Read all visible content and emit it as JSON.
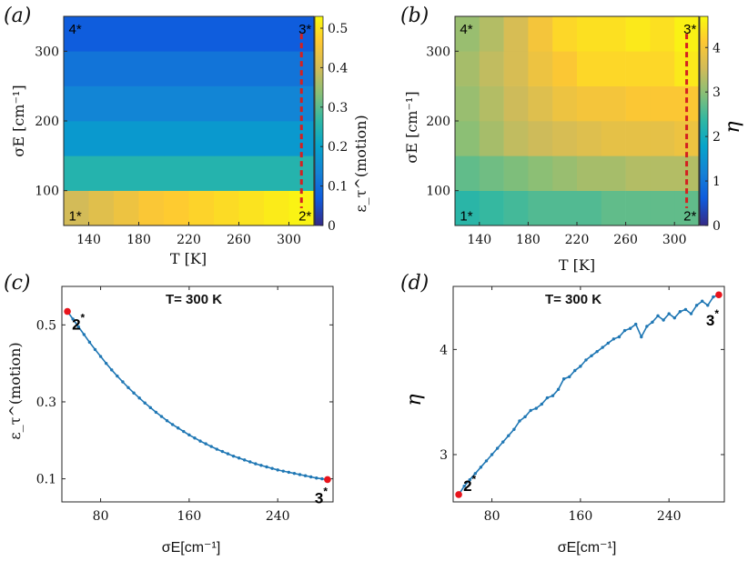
{
  "panels": {
    "a": {
      "label": "(a)"
    },
    "b": {
      "label": "(b)"
    },
    "c": {
      "label": "(c)"
    },
    "d": {
      "label": "(d)"
    }
  },
  "colors": {
    "line": "#1f77b4",
    "marker": "#e8141c",
    "dashed": "#d42020"
  },
  "chart_data": [
    {
      "panel": "a",
      "type": "heatmap",
      "xlabel": "T [K]",
      "ylabel": "σE [cm⁻¹]",
      "x_ticks": [
        140,
        180,
        220,
        260,
        300
      ],
      "y_ticks": [
        100,
        200,
        300
      ],
      "xlim": [
        120,
        320
      ],
      "ylim": [
        50,
        350
      ],
      "colorbar": {
        "label": "ε_τ^(motion)",
        "range": [
          0,
          0.53
        ],
        "ticks": [
          0,
          0.1,
          0.2,
          0.3,
          0.4,
          0.5
        ],
        "tick_labels": [
          "0",
          "0.1",
          "0.2",
          "0.3",
          "0.4",
          "0.5"
        ]
      },
      "rows_sigma": [
        75,
        125,
        175,
        225,
        275,
        325
      ],
      "cols_T": [
        130,
        150,
        170,
        190,
        210,
        230,
        250,
        270,
        290,
        310
      ],
      "values": [
        [
          0.4,
          0.42,
          0.44,
          0.46,
          0.47,
          0.48,
          0.49,
          0.5,
          0.51,
          0.52
        ],
        [
          0.25,
          0.25,
          0.25,
          0.25,
          0.25,
          0.25,
          0.25,
          0.25,
          0.25,
          0.25
        ],
        [
          0.18,
          0.18,
          0.18,
          0.18,
          0.18,
          0.18,
          0.18,
          0.18,
          0.18,
          0.18
        ],
        [
          0.14,
          0.14,
          0.14,
          0.14,
          0.14,
          0.14,
          0.14,
          0.14,
          0.14,
          0.14
        ],
        [
          0.11,
          0.11,
          0.11,
          0.11,
          0.11,
          0.11,
          0.11,
          0.11,
          0.11,
          0.11
        ],
        [
          0.07,
          0.07,
          0.07,
          0.07,
          0.07,
          0.07,
          0.07,
          0.07,
          0.07,
          0.07
        ]
      ],
      "corners": [
        {
          "text": "4*",
          "T": 124,
          "sigma": 333
        },
        {
          "text": "3*",
          "T": 318,
          "sigma": 333
        },
        {
          "text": "1*",
          "T": 124,
          "sigma": 65
        },
        {
          "text": "2*",
          "T": 318,
          "sigma": 65
        }
      ],
      "dashed_line": {
        "T": 310,
        "sigma": [
          75,
          325
        ]
      }
    },
    {
      "panel": "b",
      "type": "heatmap",
      "xlabel": "T [K]",
      "ylabel": "σE [cm⁻¹]",
      "x_ticks": [
        140,
        180,
        220,
        260,
        300
      ],
      "y_ticks": [
        100,
        200,
        300
      ],
      "xlim": [
        120,
        320
      ],
      "ylim": [
        50,
        350
      ],
      "colorbar": {
        "label": "η",
        "range": [
          0,
          4.7
        ],
        "ticks": [
          0,
          1,
          2,
          3,
          4
        ],
        "tick_labels": [
          "0",
          "1",
          "2",
          "3",
          "4"
        ]
      },
      "rows_sigma": [
        75,
        125,
        175,
        225,
        275,
        325
      ],
      "cols_T": [
        130,
        150,
        170,
        190,
        210,
        230,
        250,
        270,
        290,
        310
      ],
      "values": [
        [
          2.3,
          2.4,
          2.5,
          2.6,
          2.6,
          2.6,
          2.7,
          2.7,
          2.7,
          2.7
        ],
        [
          2.7,
          2.8,
          2.9,
          3.0,
          3.1,
          3.2,
          3.2,
          3.3,
          3.3,
          3.3
        ],
        [
          3.0,
          3.2,
          3.4,
          3.5,
          3.6,
          3.7,
          3.8,
          3.8,
          3.8,
          3.9
        ],
        [
          3.1,
          3.3,
          3.5,
          3.7,
          3.9,
          4.0,
          4.0,
          4.1,
          4.1,
          4.1
        ],
        [
          3.2,
          3.4,
          3.6,
          3.9,
          4.1,
          4.3,
          4.3,
          4.3,
          4.3,
          4.5
        ],
        [
          3.1,
          3.3,
          3.6,
          4.0,
          4.3,
          4.4,
          4.4,
          4.5,
          4.4,
          4.6
        ]
      ],
      "corners": [
        {
          "text": "4*",
          "T": 124,
          "sigma": 333
        },
        {
          "text": "3*",
          "T": 318,
          "sigma": 333
        },
        {
          "text": "1*",
          "T": 124,
          "sigma": 65
        },
        {
          "text": "2*",
          "T": 318,
          "sigma": 65
        }
      ],
      "dashed_line": {
        "T": 310,
        "sigma": [
          75,
          325
        ]
      }
    },
    {
      "panel": "c",
      "type": "line",
      "title": "T= 300 K",
      "xlabel": "σE[cm⁻¹]",
      "ylabel": "ε_τ^(motion)",
      "xlim": [
        45,
        290
      ],
      "ylim": [
        0.04,
        0.6
      ],
      "x_ticks": [
        80,
        160,
        240
      ],
      "y_ticks": [
        0.1,
        0.3,
        0.5
      ],
      "y_tick_labels": [
        "0.1",
        "0.3",
        "0.5"
      ],
      "series": [
        {
          "x": [
            50,
            55,
            60,
            65,
            70,
            75,
            80,
            85,
            90,
            95,
            100,
            105,
            110,
            115,
            120,
            125,
            130,
            135,
            140,
            145,
            150,
            155,
            160,
            165,
            170,
            175,
            180,
            185,
            190,
            195,
            200,
            205,
            210,
            215,
            220,
            225,
            230,
            235,
            240,
            245,
            250,
            255,
            260,
            265,
            270,
            275,
            280,
            285
          ],
          "y": [
            0.535,
            0.515,
            0.495,
            0.475,
            0.455,
            0.436,
            0.418,
            0.4,
            0.383,
            0.367,
            0.352,
            0.337,
            0.323,
            0.31,
            0.297,
            0.285,
            0.273,
            0.262,
            0.251,
            0.241,
            0.232,
            0.223,
            0.214,
            0.206,
            0.198,
            0.191,
            0.184,
            0.177,
            0.171,
            0.165,
            0.159,
            0.154,
            0.149,
            0.144,
            0.139,
            0.135,
            0.131,
            0.127,
            0.123,
            0.12,
            0.117,
            0.114,
            0.111,
            0.108,
            0.105,
            0.102,
            0.1,
            0.098
          ]
        }
      ],
      "endpoints": [
        {
          "label": "2",
          "sup": "*",
          "x": 50,
          "y": 0.535
        },
        {
          "label": "3",
          "sup": "*",
          "x": 285,
          "y": 0.098
        }
      ]
    },
    {
      "panel": "d",
      "type": "line",
      "title": "T= 300 K",
      "xlabel": "σE[cm⁻¹]",
      "ylabel": "η",
      "xlim": [
        45,
        290
      ],
      "ylim": [
        2.55,
        4.6
      ],
      "x_ticks": [
        80,
        160,
        240
      ],
      "y_ticks": [
        3,
        4
      ],
      "y_tick_labels": [
        "3",
        "4"
      ],
      "series": [
        {
          "x": [
            50,
            55,
            60,
            65,
            70,
            75,
            80,
            85,
            90,
            95,
            100,
            105,
            110,
            115,
            120,
            125,
            130,
            135,
            140,
            145,
            150,
            155,
            160,
            165,
            170,
            175,
            180,
            185,
            190,
            195,
            200,
            205,
            210,
            215,
            220,
            225,
            230,
            235,
            240,
            245,
            250,
            255,
            260,
            265,
            270,
            275,
            280,
            285
          ],
          "y": [
            2.62,
            2.7,
            2.76,
            2.82,
            2.88,
            2.94,
            3.0,
            3.06,
            3.12,
            3.18,
            3.24,
            3.32,
            3.36,
            3.42,
            3.44,
            3.48,
            3.54,
            3.56,
            3.62,
            3.72,
            3.74,
            3.8,
            3.84,
            3.9,
            3.94,
            3.98,
            4.02,
            4.06,
            4.1,
            4.12,
            4.18,
            4.2,
            4.24,
            4.12,
            4.22,
            4.26,
            4.32,
            4.28,
            4.34,
            4.3,
            4.36,
            4.38,
            4.34,
            4.42,
            4.46,
            4.42,
            4.5,
            4.52
          ]
        }
      ],
      "endpoints": [
        {
          "label": "2",
          "sup": "*",
          "x": 50,
          "y": 2.62
        },
        {
          "label": "3",
          "sup": "*",
          "x": 285,
          "y": 4.52
        }
      ]
    }
  ]
}
